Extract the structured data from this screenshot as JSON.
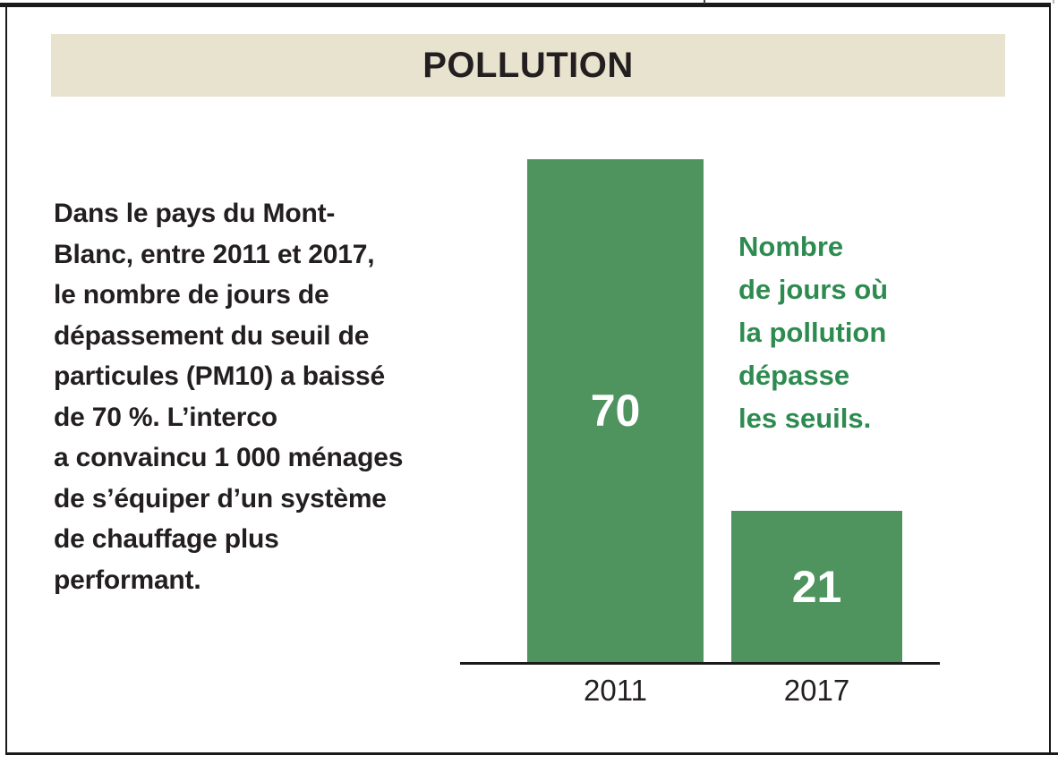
{
  "header": {
    "title": "POLLUTION",
    "background_color": "#e8e3ce"
  },
  "paragraph": {
    "text": "Dans le pays du Mont-\nBlanc, entre 2011 et 2017,\nle nombre de jours de\ndépassement du seuil de\nparticules (PM10) a baissé\nde 70 %. L’interco\na convaincu 1 000 ménages\nde s’équiper d’un système\nde chauffage plus\nperformant."
  },
  "annotation": {
    "text": "Nombre\nde jours où\nla pollution\ndépasse\nles seuils.",
    "color": "#2e8b50"
  },
  "chart_data": {
    "type": "bar",
    "categories": [
      "2011",
      "2017"
    ],
    "values": [
      70,
      21
    ],
    "title": "POLLUTION",
    "xlabel": "",
    "ylabel": "",
    "ylim": [
      0,
      70
    ],
    "grid": false,
    "legend": false,
    "bar_color": "#4f935e",
    "value_label_color": "#ffffff",
    "annotation": "Nombre de jours où la pollution dépasse les seuils."
  },
  "colors": {
    "bar_green": "#4f935e",
    "text_green": "#2e8b50",
    "header_beige": "#e8e3ce",
    "ink": "#231f20",
    "frame_black": "#1a1a1a"
  }
}
